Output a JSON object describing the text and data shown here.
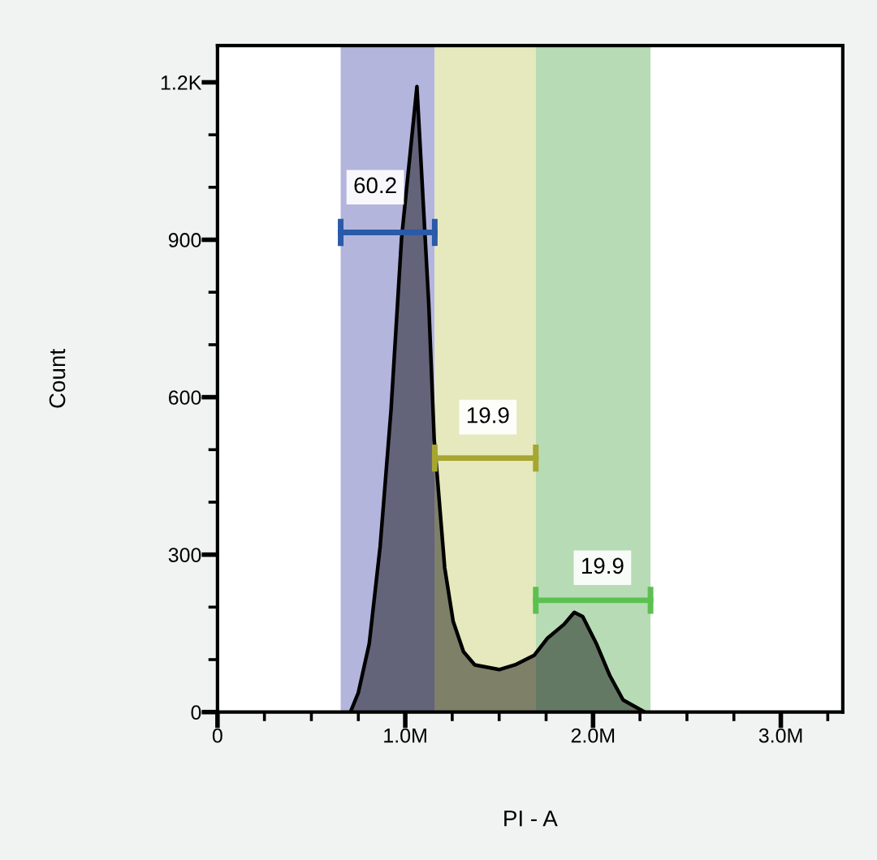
{
  "chart_data": {
    "type": "area",
    "xlabel": "PI - A",
    "ylabel": "Count",
    "xlim": [
      0,
      3330000
    ],
    "ylim": [
      0,
      1270
    ],
    "xticks": [
      0,
      {
        "value": 250000,
        "label": null
      },
      {
        "value": 500000,
        "label": null
      },
      {
        "value": 750000,
        "label": null
      },
      {
        "value": 1000000,
        "label": "1.0M"
      },
      {
        "value": 1250000,
        "label": null
      },
      {
        "value": 1500000,
        "label": null
      },
      {
        "value": 1750000,
        "label": null
      },
      {
        "value": 2000000,
        "label": "2.0M"
      },
      {
        "value": 2250000,
        "label": null
      },
      {
        "value": 2500000,
        "label": null
      },
      {
        "value": 2750000,
        "label": null
      },
      {
        "value": 3000000,
        "label": "3.0M"
      },
      {
        "value": 3250000,
        "label": null
      }
    ],
    "yticks": [
      0,
      {
        "value": 100,
        "label": null
      },
      {
        "value": 200,
        "label": null
      },
      300,
      {
        "value": 400,
        "label": null
      },
      {
        "value": 500,
        "label": null
      },
      600,
      {
        "value": 700,
        "label": null
      },
      {
        "value": 800,
        "label": null
      },
      900,
      {
        "value": 1000,
        "label": null
      },
      {
        "value": 1100,
        "label": null
      },
      {
        "value": 1200,
        "label": "1.2K"
      }
    ],
    "grid": false,
    "legend": false,
    "bands": [
      {
        "axis": "x",
        "from": 656000,
        "to": 1157000,
        "color": "#b4b5dc"
      },
      {
        "axis": "x",
        "from": 1157000,
        "to": 1695000,
        "color": "#e6e9bd"
      },
      {
        "axis": "x",
        "from": 1695000,
        "to": 2306000,
        "color": "#b7dcb5"
      }
    ],
    "series": [
      {
        "color": "#000000",
        "marker": "none",
        "x": [
          708000,
          750000,
          808000,
          866000,
          924000,
          980000,
          1062000,
          1125000,
          1154000,
          1168000,
          1210000,
          1255000,
          1310000,
          1370000,
          1500000,
          1585000,
          1686000,
          1758000,
          1845000,
          1900000,
          1945000,
          2017000,
          2090000,
          2160000,
          2275000
        ],
        "values": [
          0,
          37,
          130,
          315,
          575,
          902,
          1192,
          778,
          520,
          460,
          275,
          173,
          115,
          90,
          81,
          90,
          108,
          141,
          167,
          190,
          182,
          131,
          69,
          23,
          0
        ]
      },
      {
        "type": "line",
        "color": "#2a5aa8",
        "x": [
          656000,
          1157000
        ],
        "values": [
          914,
          914
        ]
      },
      {
        "type": "line",
        "color": "#a6a630",
        "x": [
          1157000,
          1695000
        ],
        "values": [
          484,
          484
        ]
      },
      {
        "type": "line",
        "color": "#5cc050",
        "x": [
          1695000,
          2306000
        ],
        "values": [
          213,
          213
        ]
      }
    ],
    "annotations": [
      {
        "text": "60.2",
        "x": 840000,
        "y": 1000
      },
      {
        "text": "19.9",
        "x": 1440000,
        "y": 562
      },
      {
        "text": "19.9",
        "x": 2050000,
        "y": 275
      }
    ]
  }
}
